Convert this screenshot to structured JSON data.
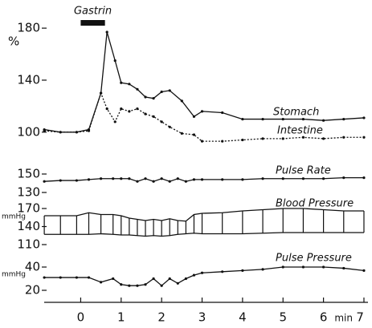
{
  "chart_data": [
    {
      "type": "line",
      "title": "Gastrin",
      "gastrin_span": [
        0,
        0.6
      ],
      "y_unit": "%",
      "x": [
        -0.9,
        -0.5,
        -0.1,
        0.2,
        0.5,
        0.65,
        0.85,
        1.0,
        1.2,
        1.4,
        1.6,
        1.8,
        2.0,
        2.2,
        2.5,
        2.8,
        3.0,
        3.5,
        4.0,
        4.5,
        5.0,
        5.5,
        6.0,
        6.5,
        7.0
      ],
      "series": [
        {
          "name": "Stomach",
          "color": "#111111",
          "dash": "solid",
          "values": [
            102,
            100,
            100,
            102,
            130,
            177,
            155,
            138,
            137,
            133,
            127,
            126,
            131,
            132,
            124,
            112,
            116,
            115,
            110,
            110,
            110,
            110,
            109,
            110,
            111
          ]
        },
        {
          "name": "Intestine",
          "color": "#111111",
          "dash": "dotted",
          "values": [
            101,
            100,
            100,
            101,
            130,
            118,
            108,
            118,
            116,
            118,
            114,
            112,
            108,
            104,
            99,
            98,
            93,
            93,
            94,
            95,
            95,
            96,
            95,
            96,
            96
          ]
        }
      ],
      "xlim": [
        -1.2,
        7.1
      ],
      "ylim": [
        90,
        185
      ],
      "yticks": [
        100,
        140,
        180
      ]
    },
    {
      "type": "line",
      "title": "Pulse Rate",
      "x": [
        -0.9,
        -0.5,
        -0.1,
        0.2,
        0.5,
        0.8,
        1.0,
        1.2,
        1.4,
        1.6,
        1.8,
        2.0,
        2.2,
        2.4,
        2.6,
        2.8,
        3.0,
        3.5,
        4.0,
        4.5,
        5.0,
        5.5,
        6.0,
        6.5,
        7.0
      ],
      "series": [
        {
          "name": "Pulse Rate",
          "color": "#111111",
          "dash": "solid",
          "values": [
            142,
            143,
            143,
            144,
            145,
            145,
            145,
            145,
            142,
            145,
            142,
            145,
            142,
            145,
            142,
            144,
            144,
            144,
            144,
            145,
            145,
            145,
            145,
            146,
            146
          ]
        }
      ],
      "xlim": [
        -1.2,
        7.1
      ],
      "ylim": [
        128,
        152
      ],
      "yticks": [
        130,
        150
      ]
    },
    {
      "type": "range",
      "title": "Blood Pressure",
      "y_unit": "mmHg",
      "x": [
        -0.9,
        -0.5,
        -0.1,
        0.2,
        0.5,
        0.8,
        1.0,
        1.2,
        1.4,
        1.6,
        1.8,
        2.0,
        2.2,
        2.4,
        2.6,
        2.8,
        3.0,
        3.5,
        4.0,
        4.5,
        5.0,
        5.5,
        6.0,
        6.5,
        7.0
      ],
      "high": [
        158,
        158,
        158,
        163,
        160,
        160,
        158,
        154,
        152,
        150,
        152,
        150,
        153,
        150,
        149,
        160,
        162,
        163,
        166,
        168,
        170,
        170,
        168,
        166,
        166
      ],
      "low": [
        127,
        127,
        127,
        127,
        128,
        127,
        126,
        126,
        125,
        124,
        125,
        124,
        125,
        127,
        128,
        129,
        128,
        128,
        128,
        129,
        130,
        130,
        130,
        130,
        130
      ],
      "color": "#111111",
      "xlim": [
        -1.2,
        7.1
      ],
      "ylim": [
        105,
        175
      ],
      "yticks": [
        110,
        140,
        170
      ]
    },
    {
      "type": "line",
      "title": "Pulse Pressure",
      "y_unit": "mmHg",
      "x": [
        -0.9,
        -0.5,
        -0.1,
        0.2,
        0.5,
        0.8,
        1.0,
        1.2,
        1.4,
        1.6,
        1.8,
        2.0,
        2.2,
        2.4,
        2.6,
        2.8,
        3.0,
        3.5,
        4.0,
        4.5,
        5.0,
        5.5,
        6.0,
        6.5,
        7.0
      ],
      "series": [
        {
          "name": "Pulse Pressure",
          "color": "#111111",
          "dash": "solid",
          "values": [
            31,
            31,
            31,
            31,
            27,
            30,
            25,
            24,
            24,
            25,
            30,
            24,
            30,
            26,
            30,
            33,
            35,
            36,
            37,
            38,
            40,
            40,
            40,
            39,
            37
          ]
        }
      ],
      "xlim": [
        -1.2,
        7.1
      ],
      "ylim": [
        15,
        45
      ],
      "yticks": [
        20,
        40
      ],
      "xticks": [
        0,
        1,
        2,
        3,
        4,
        5,
        6,
        7
      ],
      "xlabel": "min"
    }
  ]
}
